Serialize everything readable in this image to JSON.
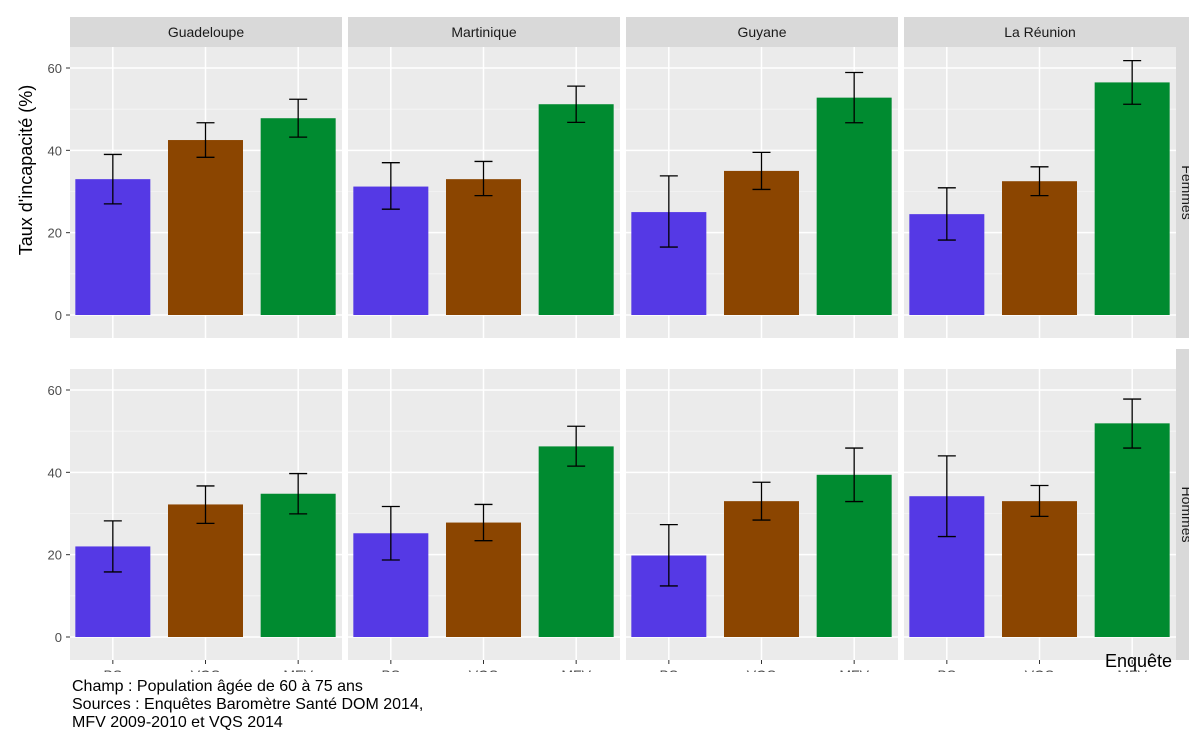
{
  "chart_data": {
    "type": "bar",
    "ylabel": "Taux d'incapacité (%)",
    "xlabel": "Enquête",
    "ylim": [
      0,
      65
    ],
    "yticks": [
      0,
      20,
      40,
      60
    ],
    "grid": true,
    "categories": [
      "BS",
      "VQS",
      "MFV"
    ],
    "bar_colors": [
      "#5539e5",
      "#8b4500",
      "#008b30"
    ],
    "columns": [
      "Guadeloupe",
      "Martinique",
      "Guyane",
      "La Réunion"
    ],
    "rows": [
      "Femmes",
      "Hommes"
    ],
    "panels": [
      {
        "column": "Guadeloupe",
        "row": "Femmes",
        "values": [
          33,
          42.5,
          47.8
        ],
        "error_low": [
          27,
          38.3,
          43.2
        ],
        "error_high": [
          39,
          46.7,
          52.4
        ]
      },
      {
        "column": "Martinique",
        "row": "Femmes",
        "values": [
          31.2,
          33,
          51.2
        ],
        "error_low": [
          25.7,
          29,
          46.8
        ],
        "error_high": [
          37,
          37.3,
          55.6
        ]
      },
      {
        "column": "Guyane",
        "row": "Femmes",
        "values": [
          25,
          35,
          52.8
        ],
        "error_low": [
          16.5,
          30.5,
          46.7
        ],
        "error_high": [
          33.8,
          39.5,
          58.9
        ]
      },
      {
        "column": "La Réunion",
        "row": "Femmes",
        "values": [
          24.5,
          32.5,
          56.5
        ],
        "error_low": [
          18.2,
          29,
          51.2
        ],
        "error_high": [
          30.9,
          36,
          61.8
        ]
      },
      {
        "column": "Guadeloupe",
        "row": "Hommes",
        "values": [
          22,
          32.2,
          34.8
        ],
        "error_low": [
          15.8,
          27.6,
          29.9
        ],
        "error_high": [
          28.2,
          36.7,
          39.7
        ]
      },
      {
        "column": "Martinique",
        "row": "Hommes",
        "values": [
          25.2,
          27.8,
          46.3
        ],
        "error_low": [
          18.7,
          23.4,
          41.5
        ],
        "error_high": [
          31.7,
          32.2,
          51.2
        ]
      },
      {
        "column": "Guyane",
        "row": "Hommes",
        "values": [
          19.8,
          33,
          39.4
        ],
        "error_low": [
          12.4,
          28.4,
          32.9
        ],
        "error_high": [
          27.3,
          37.6,
          45.9
        ]
      },
      {
        "column": "La Réunion",
        "row": "Hommes",
        "values": [
          34.2,
          33,
          51.9
        ],
        "error_low": [
          24.4,
          29.3,
          45.9
        ],
        "error_high": [
          44,
          36.8,
          57.8
        ]
      }
    ]
  },
  "notes": {
    "line1": "Champ : Population âgée de 60 à 75 ans",
    "line2": "Sources : Enquêtes Baromètre Santé DOM 2014,",
    "line3": "MFV 2009-2010 et VQS 2014"
  }
}
